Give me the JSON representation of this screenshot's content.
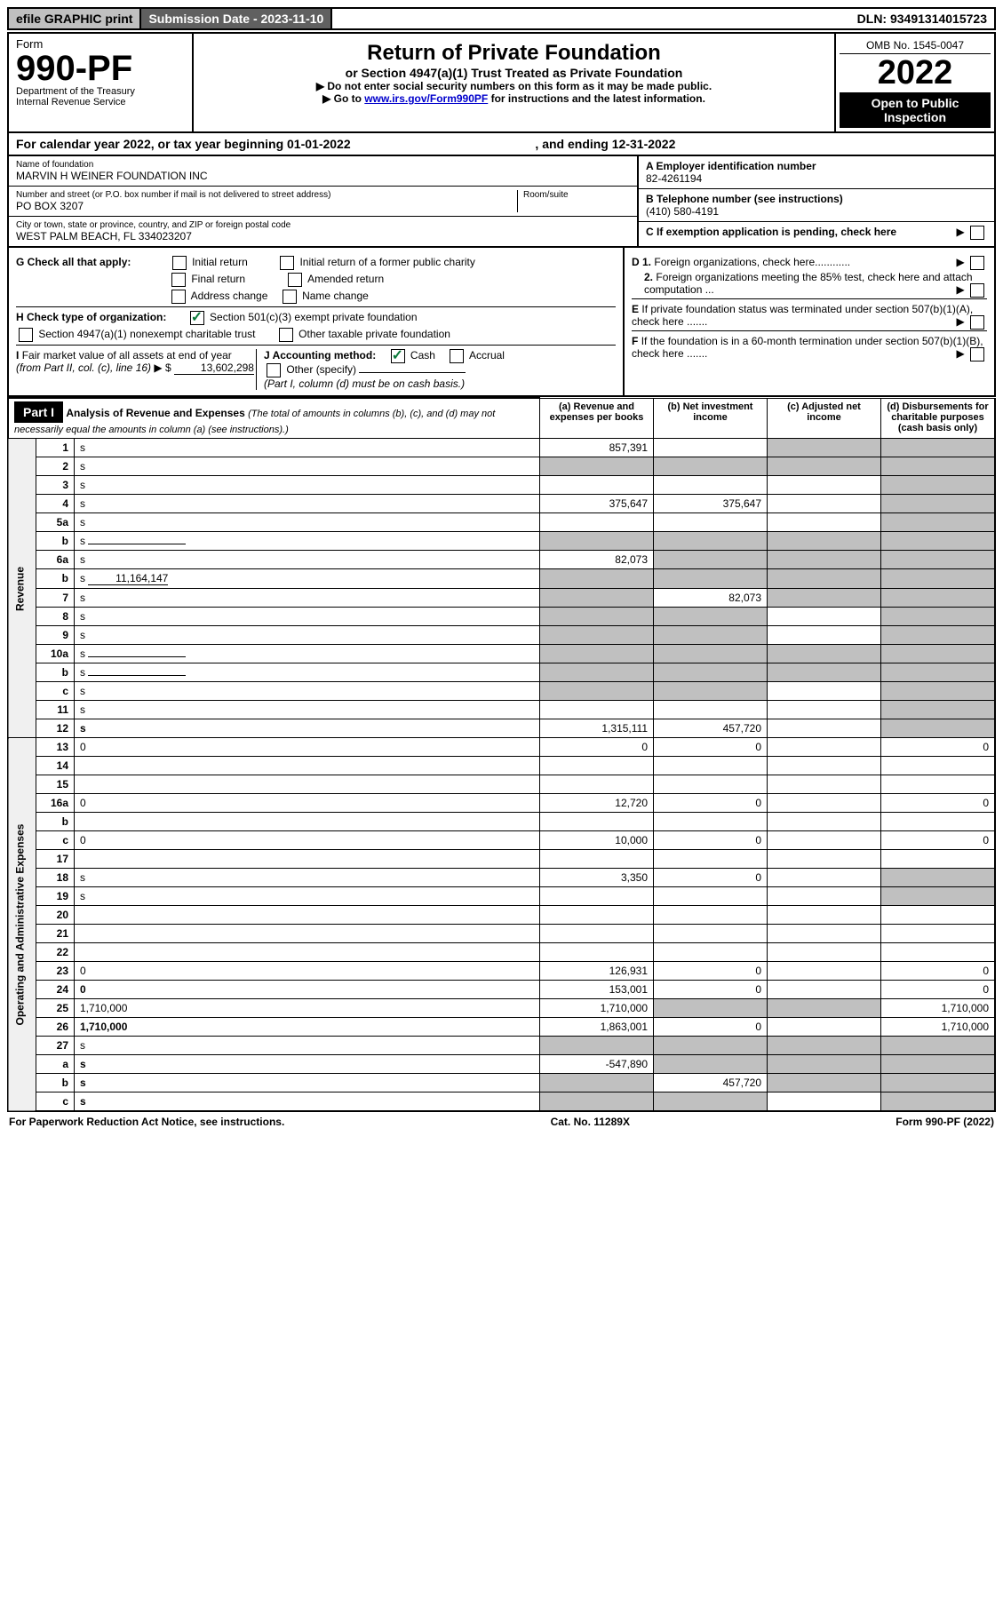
{
  "topbar": {
    "efile": "efile GRAPHIC print",
    "submission": "Submission Date - 2023-11-10",
    "dln": "DLN: 93491314015723"
  },
  "header": {
    "form_word": "Form",
    "form_number": "990-PF",
    "dept": "Department of the Treasury",
    "irs": "Internal Revenue Service",
    "title": "Return of Private Foundation",
    "subtitle": "or Section 4947(a)(1) Trust Treated as Private Foundation",
    "note1": "▶ Do not enter social security numbers on this form as it may be made public.",
    "note2_pre": "▶ Go to ",
    "note2_link": "www.irs.gov/Form990PF",
    "note2_post": " for instructions and the latest information.",
    "omb": "OMB No. 1545-0047",
    "year": "2022",
    "open": "Open to Public Inspection"
  },
  "calyear": {
    "text_pre": "For calendar year 2022, or tax year beginning ",
    "begin": "01-01-2022",
    "text_mid": ", and ending ",
    "end": "12-31-2022"
  },
  "entity": {
    "name_label": "Name of foundation",
    "name": "MARVIN H WEINER FOUNDATION INC",
    "addr_label": "Number and street (or P.O. box number if mail is not delivered to street address)",
    "addr": "PO BOX 3207",
    "room_label": "Room/suite",
    "city_label": "City or town, state or province, country, and ZIP or foreign postal code",
    "city": "WEST PALM BEACH, FL  334023207",
    "a_label": "A Employer identification number",
    "ein": "82-4261194",
    "b_label": "B Telephone number (see instructions)",
    "phone": "(410) 580-4191",
    "c_label": "C If exemption application is pending, check here"
  },
  "checks": {
    "g_label": "G Check all that apply:",
    "g_opts": [
      "Initial return",
      "Initial return of a former public charity",
      "Final return",
      "Amended return",
      "Address change",
      "Name change"
    ],
    "h_label": "H Check type of organization:",
    "h_501": "Section 501(c)(3) exempt private foundation",
    "h_4947": "Section 4947(a)(1) nonexempt charitable trust",
    "h_other": "Other taxable private foundation",
    "i_label": "I Fair market value of all assets at end of year (from Part II, col. (c), line 16) ▶ $",
    "i_val": "13,602,298",
    "j_label": "J Accounting method:",
    "j_cash": "Cash",
    "j_accrual": "Accrual",
    "j_other": "Other (specify)",
    "j_note": "(Part I, column (d) must be on cash basis.)",
    "d1": "D 1. Foreign organizations, check here............",
    "d2": "2. Foreign organizations meeting the 85% test, check here and attach computation ...",
    "e": "E  If private foundation status was terminated under section 507(b)(1)(A), check here .......",
    "f": "F  If the foundation is in a 60-month termination under section 507(b)(1)(B), check here .......",
    "arrow": "▶"
  },
  "part1": {
    "label": "Part I",
    "title": "Analysis of Revenue and Expenses",
    "title_note": "(The total of amounts in columns (b), (c), and (d) may not necessarily equal the amounts in column (a) (see instructions).)",
    "col_a": "(a)   Revenue and expenses per books",
    "col_b": "(b)   Net investment income",
    "col_c": "(c)   Adjusted net income",
    "col_d": "(d)   Disbursements for charitable purposes (cash basis only)",
    "side_rev": "Revenue",
    "side_exp": "Operating and Administrative Expenses"
  },
  "rows": [
    {
      "n": "1",
      "d": "s",
      "a": "857,391",
      "b": "",
      "c": "s"
    },
    {
      "n": "2",
      "d": "s",
      "a": "s",
      "b": "s",
      "c": "s"
    },
    {
      "n": "3",
      "d": "s",
      "a": "",
      "b": "",
      "c": ""
    },
    {
      "n": "4",
      "d": "s",
      "a": "375,647",
      "b": "375,647",
      "c": ""
    },
    {
      "n": "5a",
      "d": "s",
      "a": "",
      "b": "",
      "c": ""
    },
    {
      "n": "b",
      "d": "s",
      "a": "s",
      "b": "s",
      "c": "s",
      "inline": true
    },
    {
      "n": "6a",
      "d": "s",
      "a": "82,073",
      "b": "s",
      "c": "s"
    },
    {
      "n": "b",
      "d": "s",
      "a": "s",
      "b": "s",
      "c": "s",
      "inline_val": "11,164,147"
    },
    {
      "n": "7",
      "d": "s",
      "a": "s",
      "b": "82,073",
      "c": "s"
    },
    {
      "n": "8",
      "d": "s",
      "a": "s",
      "b": "s",
      "c": ""
    },
    {
      "n": "9",
      "d": "s",
      "a": "s",
      "b": "s",
      "c": ""
    },
    {
      "n": "10a",
      "d": "s",
      "a": "s",
      "b": "s",
      "c": "s",
      "inline": true
    },
    {
      "n": "b",
      "d": "s",
      "a": "s",
      "b": "s",
      "c": "s",
      "inline": true
    },
    {
      "n": "c",
      "d": "s",
      "a": "s",
      "b": "s",
      "c": ""
    },
    {
      "n": "11",
      "d": "s",
      "a": "",
      "b": "",
      "c": ""
    },
    {
      "n": "12",
      "d": "s",
      "a": "1,315,111",
      "b": "457,720",
      "c": "",
      "bold": true
    }
  ],
  "exp_rows": [
    {
      "n": "13",
      "d": "0",
      "a": "0",
      "b": "0",
      "c": ""
    },
    {
      "n": "14",
      "d": "",
      "a": "",
      "b": "",
      "c": ""
    },
    {
      "n": "15",
      "d": "",
      "a": "",
      "b": "",
      "c": ""
    },
    {
      "n": "16a",
      "d": "0",
      "a": "12,720",
      "b": "0",
      "c": ""
    },
    {
      "n": "b",
      "d": "",
      "a": "",
      "b": "",
      "c": ""
    },
    {
      "n": "c",
      "d": "0",
      "a": "10,000",
      "b": "0",
      "c": ""
    },
    {
      "n": "17",
      "d": "",
      "a": "",
      "b": "",
      "c": ""
    },
    {
      "n": "18",
      "d": "s",
      "a": "3,350",
      "b": "0",
      "c": ""
    },
    {
      "n": "19",
      "d": "s",
      "a": "",
      "b": "",
      "c": ""
    },
    {
      "n": "20",
      "d": "",
      "a": "",
      "b": "",
      "c": ""
    },
    {
      "n": "21",
      "d": "",
      "a": "",
      "b": "",
      "c": ""
    },
    {
      "n": "22",
      "d": "",
      "a": "",
      "b": "",
      "c": ""
    },
    {
      "n": "23",
      "d": "0",
      "a": "126,931",
      "b": "0",
      "c": ""
    },
    {
      "n": "24",
      "d": "0",
      "a": "153,001",
      "b": "0",
      "c": "",
      "bold": true
    },
    {
      "n": "25",
      "d": "1,710,000",
      "a": "1,710,000",
      "b": "s",
      "c": "s"
    },
    {
      "n": "26",
      "d": "1,710,000",
      "a": "1,863,001",
      "b": "0",
      "c": "",
      "bold": true
    },
    {
      "n": "27",
      "d": "s",
      "a": "s",
      "b": "s",
      "c": "s"
    },
    {
      "n": "a",
      "d": "s",
      "a": "-547,890",
      "b": "s",
      "c": "s",
      "bold": true
    },
    {
      "n": "b",
      "d": "s",
      "a": "s",
      "b": "457,720",
      "c": "s",
      "bold": true
    },
    {
      "n": "c",
      "d": "s",
      "a": "s",
      "b": "s",
      "c": "",
      "bold": true
    }
  ],
  "footer": {
    "left": "For Paperwork Reduction Act Notice, see instructions.",
    "mid": "Cat. No. 11289X",
    "right": "Form 990-PF (2022)"
  },
  "colors": {
    "shaded": "#c0c0c0",
    "black": "#000000",
    "link": "#0000cc",
    "check": "#0a7a3a"
  }
}
